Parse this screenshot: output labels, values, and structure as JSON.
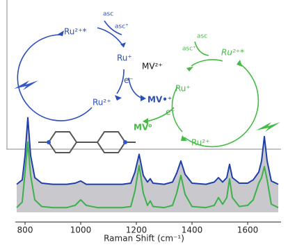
{
  "chart_data": {
    "type": "line",
    "x_label": "Raman Shift (cm⁻¹)",
    "x": [
      770,
      790,
      800,
      810,
      820,
      835,
      860,
      900,
      950,
      980,
      1000,
      1020,
      1060,
      1100,
      1150,
      1180,
      1195,
      1210,
      1225,
      1240,
      1250,
      1260,
      1300,
      1330,
      1345,
      1360,
      1375,
      1400,
      1450,
      1480,
      1495,
      1510,
      1525,
      1535,
      1545,
      1570,
      1600,
      1620,
      1640,
      1650,
      1660,
      1670,
      1685,
      1710
    ],
    "series": [
      {
        "color": "#1f3fa8",
        "values": [
          34,
          38,
          60,
          94,
          60,
          40,
          35,
          34,
          34,
          35,
          37,
          34,
          34,
          34,
          34,
          35,
          45,
          61,
          42,
          36,
          39,
          35,
          34,
          36,
          44,
          55,
          43,
          35,
          34,
          36,
          40,
          36,
          40,
          52,
          40,
          35,
          35,
          38,
          45,
          55,
          77,
          55,
          37,
          34
        ]
      },
      {
        "color": "#3cb04a",
        "values": [
          13,
          18,
          45,
          72,
          42,
          20,
          14,
          13,
          13,
          15,
          20,
          15,
          13,
          13,
          13,
          14,
          28,
          51,
          26,
          15,
          19,
          14,
          13,
          15,
          26,
          42,
          25,
          14,
          13,
          15,
          22,
          16,
          22,
          39,
          22,
          14,
          15,
          20,
          35,
          40,
          50,
          38,
          16,
          13
        ]
      }
    ],
    "fill_color": "#c9c9cd",
    "xlim": [
      765,
      1720
    ],
    "xticks": [
      800,
      1000,
      1200,
      1400,
      1600
    ],
    "ylim": [
      0,
      100
    ],
    "annotations": {
      "blue": [
        "Ru²⁺*",
        "asc",
        "asc⁺",
        "Ru⁺",
        "e⁻",
        "MV•⁺",
        "Ru²⁺"
      ],
      "black": [
        "MV²⁺"
      ],
      "green": [
        "asc",
        "asc⁺",
        "Ru²⁺*",
        "Ru⁺",
        "e⁻",
        "MV⁰",
        "Ru²⁺"
      ]
    }
  }
}
